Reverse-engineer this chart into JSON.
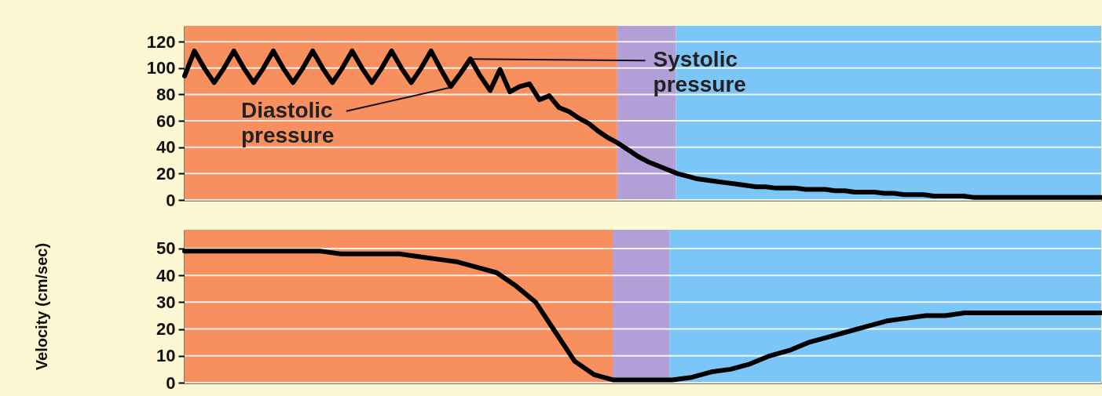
{
  "chart_data": [
    {
      "type": "line",
      "categories": [
        null,
        null,
        null,
        null,
        null,
        null,
        null,
        null,
        null,
        null,
        null,
        null,
        null,
        null,
        null,
        null,
        null,
        null,
        null,
        null,
        null,
        null,
        null,
        null,
        null,
        null,
        null,
        null,
        null,
        null,
        null,
        null,
        null,
        null,
        null,
        null,
        null,
        null,
        null,
        null,
        null,
        null,
        null,
        null,
        null,
        null,
        null,
        null,
        null,
        null,
        null,
        null,
        null,
        null,
        null,
        null,
        null,
        null,
        null,
        null,
        null,
        null,
        null,
        null,
        null,
        null,
        null,
        null,
        null,
        null,
        null,
        null,
        null,
        null,
        null,
        null,
        null,
        null,
        null,
        null,
        null,
        null,
        null,
        null,
        null,
        null,
        null,
        null,
        null,
        null,
        null,
        null,
        null,
        null
      ],
      "ylim": [
        0,
        132
      ],
      "yticks": [
        0,
        20,
        40,
        60,
        80,
        100,
        120
      ],
      "tick_labels": "y",
      "grid": "y",
      "line_style": "solid",
      "series": [
        {
          "color": "#000000",
          "values": [
            94,
            113,
            100,
            89,
            100,
            113,
            100,
            89,
            100,
            113,
            100,
            89,
            100,
            113,
            100,
            89,
            100,
            113,
            100,
            89,
            100,
            113,
            100,
            89,
            100,
            113,
            99,
            86,
            96,
            107,
            94,
            83,
            99,
            82,
            86,
            88,
            76,
            79,
            70,
            67,
            62,
            58,
            52,
            47,
            43,
            38,
            33,
            29,
            26,
            23,
            20,
            18,
            16,
            15,
            14,
            13,
            12,
            11,
            10,
            10,
            9,
            9,
            9,
            8,
            8,
            8,
            7,
            7,
            6,
            6,
            6,
            5,
            5,
            4,
            4,
            4,
            3,
            3,
            3,
            3,
            2,
            2,
            2,
            2,
            2,
            2,
            2,
            2,
            2,
            2,
            2,
            2,
            2,
            2
          ]
        }
      ],
      "annotations": [
        "Systolic pressure",
        "Diastolic pressure"
      ]
    },
    {
      "type": "line",
      "categories": [
        null,
        null,
        null,
        null,
        null,
        null,
        null,
        null,
        null,
        null,
        null,
        null,
        null,
        null,
        null,
        null,
        null,
        null,
        null,
        null,
        null,
        null,
        null,
        null,
        null,
        null,
        null,
        null,
        null,
        null,
        null,
        null,
        null,
        null,
        null,
        null,
        null,
        null,
        null,
        null,
        null,
        null,
        null,
        null,
        null,
        null,
        null,
        null
      ],
      "ylim": [
        0,
        57
      ],
      "yticks": [
        0,
        10,
        20,
        30,
        40,
        50
      ],
      "tick_labels": "y",
      "grid": "y",
      "line_style": "solid",
      "ylabel": "Velocity (cm/sec)",
      "series": [
        {
          "color": "#000000",
          "values": [
            49,
            49,
            49,
            49,
            49,
            49,
            49,
            49,
            48,
            48,
            48,
            48,
            47,
            46,
            45,
            43,
            41,
            36,
            30,
            19,
            8,
            3,
            1,
            1,
            1,
            1,
            2,
            4,
            5,
            7,
            10,
            12,
            15,
            17,
            19,
            21,
            23,
            24,
            25,
            25,
            26,
            26,
            26,
            26,
            26,
            26,
            26,
            26
          ]
        }
      ]
    }
  ]
}
